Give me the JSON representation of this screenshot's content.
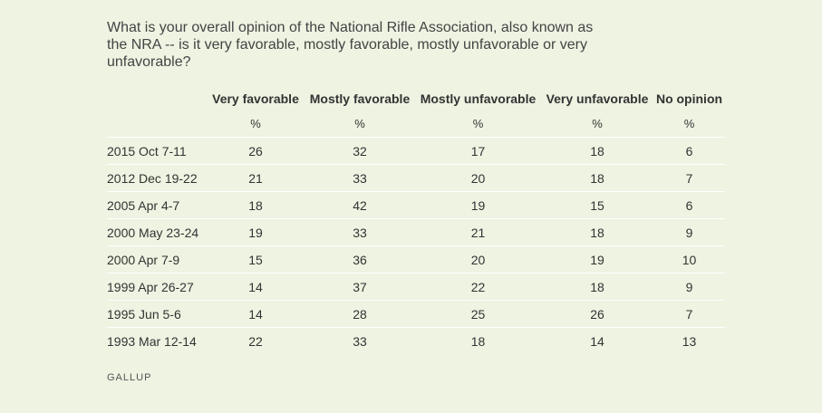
{
  "question": "What is your overall opinion of the National Rifle Association, also known as the NRA -- is it very favorable, mostly favorable, mostly unfavorable or very unfavorable?",
  "source": "GALLUP",
  "chart_data": {
    "type": "table",
    "title": "What is your overall opinion of the National Rifle Association, also known as the NRA -- is it very favorable, mostly favorable, mostly unfavorable or very unfavorable?",
    "columns": [
      "",
      "Very favorable",
      "Mostly favorable",
      "Mostly unfavorable",
      "Very unfavorable",
      "No opinion"
    ],
    "units": [
      "",
      "%",
      "%",
      "%",
      "%",
      "%"
    ],
    "rows": [
      [
        "2015 Oct 7-11",
        26,
        32,
        17,
        18,
        6
      ],
      [
        "2012 Dec 19-22",
        21,
        33,
        20,
        18,
        7
      ],
      [
        "2005 Apr 4-7",
        18,
        42,
        19,
        15,
        6
      ],
      [
        "2000 May 23-24",
        19,
        33,
        21,
        18,
        9
      ],
      [
        "2000 Apr 7-9",
        15,
        36,
        20,
        19,
        10
      ],
      [
        "1999 Apr 26-27",
        14,
        37,
        22,
        18,
        9
      ],
      [
        "1995 Jun 5-6",
        14,
        28,
        25,
        26,
        7
      ],
      [
        "1993 Mar 12-14",
        22,
        33,
        18,
        14,
        13
      ]
    ]
  }
}
